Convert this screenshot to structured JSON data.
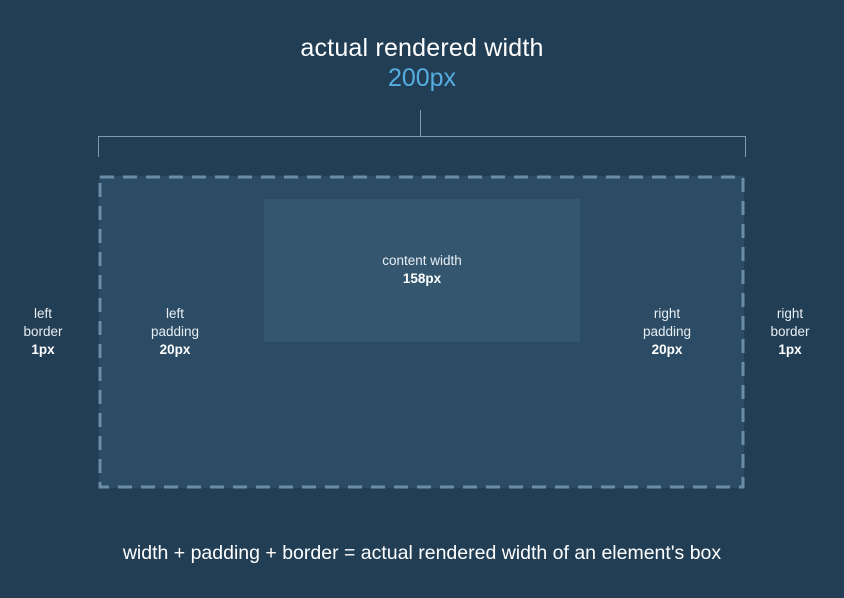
{
  "header": {
    "title": "actual rendered width",
    "value": "200px"
  },
  "content": {
    "label": "content width",
    "value": "158px"
  },
  "left_border": {
    "line1": "left",
    "line2": "border",
    "value": "1px"
  },
  "left_padding": {
    "line1": "left",
    "line2": "padding",
    "value": "20px"
  },
  "right_padding": {
    "line1": "right",
    "line2": "padding",
    "value": "20px"
  },
  "right_border": {
    "line1": "right",
    "line2": "border",
    "value": "1px"
  },
  "formula": "width + padding + border = actual rendered width of an element's box",
  "colors": {
    "background": "#213e55",
    "box": "#2b4c64",
    "content": "#34576f",
    "accent": "#55ade0",
    "dashed_border": "#6b8ea8",
    "bracket": "#7f9bb0"
  }
}
